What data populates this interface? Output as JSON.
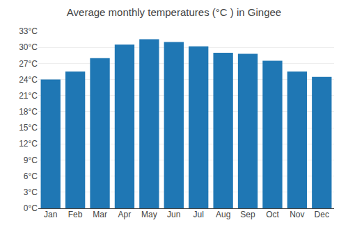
{
  "chart_data": {
    "type": "bar",
    "title": "Average monthly temperatures (°C ) in Gingee",
    "categories": [
      "Jan",
      "Feb",
      "Mar",
      "Apr",
      "May",
      "Jun",
      "Jul",
      "Aug",
      "Sep",
      "Oct",
      "Nov",
      "Dec"
    ],
    "values": [
      24.0,
      25.5,
      28.0,
      30.5,
      31.5,
      31.0,
      30.2,
      29.0,
      28.8,
      27.5,
      25.5,
      24.5
    ],
    "ylim": [
      0,
      33
    ],
    "yticks": [
      {
        "value": 0,
        "label": "0°C"
      },
      {
        "value": 3,
        "label": "3°C"
      },
      {
        "value": 6,
        "label": "6°C"
      },
      {
        "value": 9,
        "label": "9°C"
      },
      {
        "value": 12,
        "label": "12°C"
      },
      {
        "value": 15,
        "label": "15°C"
      },
      {
        "value": 18,
        "label": "18°C"
      },
      {
        "value": 21,
        "label": "21°C"
      },
      {
        "value": 24,
        "label": "24°C"
      },
      {
        "value": 27,
        "label": "27°C"
      },
      {
        "value": 30,
        "label": "30°C"
      },
      {
        "value": 33,
        "label": "33°C"
      }
    ],
    "grid": true
  }
}
